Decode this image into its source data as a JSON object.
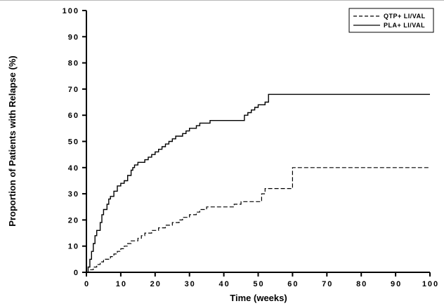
{
  "figure": {
    "background": "#ffffff",
    "line_color": "#000000"
  },
  "chart_data": {
    "type": "line",
    "subtype": "step-after",
    "title": "",
    "xlabel": "Time (weeks)",
    "ylabel": "Proportion of Patients with Relapse (%)",
    "xlim": [
      0,
      100
    ],
    "ylim": [
      0,
      100
    ],
    "xticks": [
      0,
      10,
      20,
      30,
      40,
      50,
      60,
      70,
      80,
      90,
      100
    ],
    "yticks": [
      0,
      10,
      20,
      30,
      40,
      50,
      60,
      70,
      80,
      90,
      100
    ],
    "grid": false,
    "legend_position": "top-right",
    "series": [
      {
        "name": "QTP+ LI/VAL",
        "style": "dashed",
        "color": "#000000",
        "points": [
          [
            0,
            0
          ],
          [
            1,
            1
          ],
          [
            2,
            2
          ],
          [
            3,
            3
          ],
          [
            4,
            4
          ],
          [
            5,
            5
          ],
          [
            7,
            6
          ],
          [
            8,
            7
          ],
          [
            9,
            8
          ],
          [
            10,
            9
          ],
          [
            11,
            10
          ],
          [
            12,
            11
          ],
          [
            13,
            12
          ],
          [
            15,
            13
          ],
          [
            16,
            14
          ],
          [
            17,
            15
          ],
          [
            19,
            16
          ],
          [
            21,
            17
          ],
          [
            23,
            18
          ],
          [
            25,
            19
          ],
          [
            27,
            20
          ],
          [
            28,
            21
          ],
          [
            30,
            22
          ],
          [
            32,
            23
          ],
          [
            33,
            24
          ],
          [
            35,
            25
          ],
          [
            43,
            26
          ],
          [
            45,
            27
          ],
          [
            51,
            30
          ],
          [
            52,
            32
          ],
          [
            60,
            40
          ],
          [
            100,
            40
          ]
        ]
      },
      {
        "name": "PLA+ LI/VAL",
        "style": "solid",
        "color": "#000000",
        "points": [
          [
            0,
            0
          ],
          [
            0.5,
            2
          ],
          [
            1,
            5
          ],
          [
            1.5,
            8
          ],
          [
            2,
            11
          ],
          [
            2.5,
            14
          ],
          [
            3,
            16
          ],
          [
            4,
            19
          ],
          [
            4.5,
            22
          ],
          [
            5,
            24
          ],
          [
            6,
            26
          ],
          [
            6.5,
            28
          ],
          [
            7,
            29
          ],
          [
            8,
            31
          ],
          [
            9,
            33
          ],
          [
            10,
            34
          ],
          [
            11,
            35
          ],
          [
            12,
            37
          ],
          [
            13,
            39
          ],
          [
            13.5,
            40
          ],
          [
            14,
            41
          ],
          [
            15,
            42
          ],
          [
            17,
            43
          ],
          [
            18,
            44
          ],
          [
            19,
            45
          ],
          [
            20,
            46
          ],
          [
            21,
            47
          ],
          [
            22,
            48
          ],
          [
            23,
            49
          ],
          [
            24,
            50
          ],
          [
            25,
            51
          ],
          [
            26,
            52
          ],
          [
            28,
            53
          ],
          [
            29,
            54
          ],
          [
            30,
            55
          ],
          [
            32,
            56
          ],
          [
            33,
            57
          ],
          [
            36,
            58
          ],
          [
            46,
            60
          ],
          [
            47,
            61
          ],
          [
            48,
            62
          ],
          [
            49,
            63
          ],
          [
            50,
            64
          ],
          [
            52,
            65
          ],
          [
            53,
            68
          ],
          [
            100,
            68
          ]
        ]
      }
    ]
  }
}
